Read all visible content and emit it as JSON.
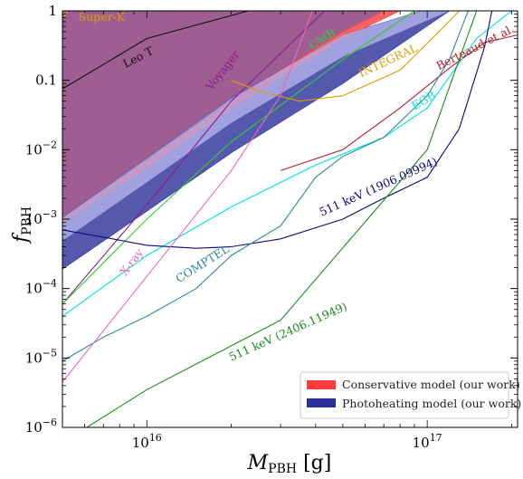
{
  "chart_data": {
    "type": "line",
    "xlabel": "M_PBH [g]",
    "ylabel": "f_PBH",
    "x_scale": "log",
    "y_scale": "log",
    "xlim": [
      5000000000000000.0,
      2.1e+17
    ],
    "ylim": [
      1e-06,
      1
    ],
    "x_ticks": [
      {
        "value": 1e+16,
        "label": "10^16"
      },
      {
        "value": 1e+17,
        "label": "10^17"
      }
    ],
    "y_ticks": [
      {
        "value": 1e-06,
        "label": "10^-6"
      },
      {
        "value": 1e-05,
        "label": "10^-5"
      },
      {
        "value": 0.0001,
        "label": "10^-4"
      },
      {
        "value": 0.001,
        "label": "10^-3"
      },
      {
        "value": 0.01,
        "label": "10^-2"
      },
      {
        "value": 0.1,
        "label": "0.1"
      },
      {
        "value": 1,
        "label": "1"
      }
    ],
    "grid": false,
    "legend": {
      "position": "bottom-right",
      "entries": [
        {
          "label": "Conservative model (our work)",
          "color": "#ff3b3b"
        },
        {
          "label": "Photoheating model (our work)",
          "color": "#2b2f9a"
        }
      ]
    },
    "bands": [
      {
        "name": "Conservative model (our work)",
        "color": "#ff3b3b",
        "upper": [
          [
            5000000000000000.0,
            0.001
          ],
          [
            1e+16,
            0.007
          ],
          [
            2e+16,
            0.05
          ],
          [
            5e+16,
            0.5
          ],
          [
            7e+16,
            1.0
          ]
        ],
        "lower": [
          [
            5000000000000000.0,
            0.0009
          ],
          [
            1e+16,
            0.0055
          ],
          [
            2e+16,
            0.04
          ],
          [
            5e+16,
            0.4
          ],
          [
            8e+16,
            1.0
          ]
        ]
      },
      {
        "name": "Photoheating model (our work)",
        "color": "#2b2f9a",
        "upper": [
          [
            5000000000000000.0,
            0.00105
          ],
          [
            1e+16,
            0.0075
          ],
          [
            2e+16,
            0.055
          ],
          [
            5e+16,
            0.45
          ],
          [
            9.5e+16,
            1.0
          ]
        ],
        "lower": [
          [
            5000000000000000.0,
            0.00019
          ],
          [
            1e+16,
            0.0013
          ],
          [
            2e+16,
            0.009
          ],
          [
            5e+16,
            0.09
          ],
          [
            1.2e+17,
            1.0
          ]
        ]
      }
    ],
    "series": [
      {
        "name": "Super-K",
        "color": "#d9a000",
        "points": [
          [
            5000000000000000.0,
            1.0
          ],
          [
            5100000000000000.0,
            0.85
          ],
          [
            5200000000000000.0,
            1.0
          ]
        ]
      },
      {
        "name": "Leo T",
        "color": "#111111",
        "points": [
          [
            5000000000000000.0,
            0.075
          ],
          [
            1e+16,
            0.4
          ],
          [
            2.3e+16,
            1.0
          ]
        ]
      },
      {
        "name": "Voyager",
        "color": "#8b1a8b",
        "points": [
          [
            5000000000000000.0,
            6e-05
          ],
          [
            1e+16,
            0.0016
          ],
          [
            2e+16,
            0.05
          ],
          [
            4.3e+16,
            1.0
          ]
        ]
      },
      {
        "name": "CMB",
        "color": "#33cc33",
        "points": [
          [
            5000000000000000.0,
            6e-05
          ],
          [
            1e+16,
            0.001
          ],
          [
            2e+16,
            0.013
          ],
          [
            5e+16,
            0.2
          ],
          [
            9e+16,
            1.0
          ]
        ]
      },
      {
        "name": "INTEGRAL",
        "color": "#e09a00",
        "points": [
          [
            2e+16,
            0.1
          ],
          [
            2.5e+16,
            0.07
          ],
          [
            3.5e+16,
            0.05
          ],
          [
            5e+16,
            0.06
          ],
          [
            8e+16,
            0.14
          ],
          [
            1.1e+17,
            0.5
          ],
          [
            1.3e+17,
            1.0
          ]
        ]
      },
      {
        "name": "Berteaud et al.",
        "color": "#b01e2e",
        "points": [
          [
            3e+16,
            0.005
          ],
          [
            5e+16,
            0.01
          ],
          [
            8e+16,
            0.04
          ],
          [
            1.2e+17,
            0.15
          ],
          [
            1.6e+17,
            0.35
          ],
          [
            2.1e+17,
            0.45
          ]
        ]
      },
      {
        "name": "EGB",
        "color": "#00e0e0",
        "points": [
          [
            5000000000000000.0,
            4e-05
          ],
          [
            1e+16,
            0.0003
          ],
          [
            2e+16,
            0.0015
          ],
          [
            4e+16,
            0.006
          ],
          [
            7e+16,
            0.015
          ],
          [
            1e+17,
            0.04
          ],
          [
            1.5e+17,
            0.4
          ],
          [
            2e+17,
            1.0
          ]
        ]
      },
      {
        "name": "511 keV (1906.09994)",
        "color": "#0a0a7a",
        "points": [
          [
            5000000000000000.0,
            0.0007
          ],
          [
            7000000000000000.0,
            0.00055
          ],
          [
            1e+16,
            0.00042
          ],
          [
            1.5e+16,
            0.00038
          ],
          [
            2e+16,
            0.0004
          ],
          [
            3e+16,
            0.00052
          ],
          [
            5e+16,
            0.001
          ],
          [
            7e+16,
            0.002
          ],
          [
            1e+17,
            0.004
          ],
          [
            1.3e+17,
            0.02
          ],
          [
            1.6e+17,
            0.3
          ],
          [
            1.7e+17,
            1.0
          ]
        ]
      },
      {
        "name": "COMPTEL",
        "color": "#2a8aa0",
        "points": [
          [
            5000000000000000.0,
            9e-06
          ],
          [
            7000000000000000.0,
            2e-05
          ],
          [
            1e+16,
            4e-05
          ],
          [
            1.5e+16,
            0.0001
          ],
          [
            2e+16,
            0.0003
          ],
          [
            3e+16,
            0.0008
          ],
          [
            4e+16,
            0.004
          ],
          [
            5e+16,
            0.008
          ],
          [
            7e+16,
            0.015
          ],
          [
            1e+17,
            0.06
          ],
          [
            1.2e+17,
            0.2
          ],
          [
            1.4e+17,
            1.0
          ]
        ]
      },
      {
        "name": "X-ray",
        "color": "#ee66bb",
        "points": [
          [
            5000000000000000.0,
            4.5e-06
          ],
          [
            1e+16,
            0.00015
          ],
          [
            2e+16,
            0.005
          ],
          [
            3e+16,
            0.06
          ],
          [
            3.9e+16,
            1.0
          ]
        ]
      },
      {
        "name": "511 keV (2406.11949)",
        "color": "#1a8a1a",
        "points": [
          [
            5000000000000000.0,
            6e-07
          ],
          [
            1e+16,
            3.5e-06
          ],
          [
            3e+16,
            3.5e-05
          ],
          [
            1e+17,
            0.01
          ],
          [
            1.3e+17,
            0.2
          ],
          [
            1.5e+17,
            1.0
          ]
        ]
      }
    ],
    "annotations": [
      {
        "text": "Super-K",
        "color": "#d9a000",
        "x": 5700000000000000.0,
        "y": 0.72,
        "angle": 0
      },
      {
        "text": "Leo T",
        "color": "#111111",
        "x": 8400000000000000.0,
        "y": 0.15,
        "angle": -27
      },
      {
        "text": "Voyager",
        "color": "#8b1a8b",
        "x": 1.7e+16,
        "y": 0.07,
        "angle": -52
      },
      {
        "text": "CMB",
        "color": "#33cc33",
        "x": 3.9e+16,
        "y": 0.27,
        "angle": -33
      },
      {
        "text": "INTEGRAL",
        "color": "#e09a00",
        "x": 5.8e+16,
        "y": 0.11,
        "angle": -25
      },
      {
        "text": "Berteaud et al.",
        "color": "#b01e2e",
        "x": 1.1e+17,
        "y": 0.14,
        "angle": -27
      },
      {
        "text": "EGB",
        "color": "#00e0e0",
        "x": 9e+16,
        "y": 0.037,
        "angle": -30
      },
      {
        "text": "511 keV (1906.09994)",
        "color": "#0a0a7a",
        "x": 4.2e+16,
        "y": 0.0011,
        "angle": -24
      },
      {
        "text": "COMPTEL",
        "color": "#2a8aa0",
        "x": 1.3e+16,
        "y": 0.00012,
        "angle": -32
      },
      {
        "text": "X-ray",
        "color": "#ee66bb",
        "x": 8400000000000000.0,
        "y": 0.00015,
        "angle": -53
      },
      {
        "text": "511 keV (2406.11949)",
        "color": "#1a8a1a",
        "x": 2e+16,
        "y": 9e-06,
        "angle": -24
      }
    ],
    "colors": {
      "excluded_region": "#8a3a7a"
    }
  }
}
